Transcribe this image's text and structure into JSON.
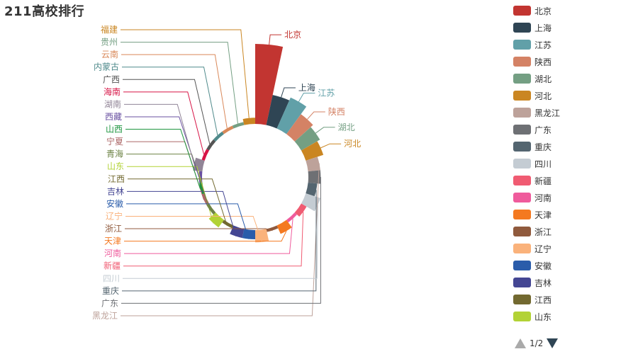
{
  "chart_data": {
    "type": "pie",
    "subtype": "rose-donut",
    "title": "211高校排行",
    "series": [
      {
        "name": "北京",
        "value": 26,
        "color": "#c23531"
      },
      {
        "name": "上海",
        "value": 10,
        "color": "#2f4554"
      },
      {
        "name": "江苏",
        "value": 11,
        "color": "#61a0a8"
      },
      {
        "name": "陕西",
        "value": 8,
        "color": "#d48265"
      },
      {
        "name": "湖北",
        "value": 7,
        "color": "#749f83"
      },
      {
        "name": "河北",
        "value": 6,
        "color": "#ca8622"
      },
      {
        "name": "黑龙江",
        "value": 4,
        "color": "#bda29a"
      },
      {
        "name": "广东",
        "value": 4,
        "color": "#6e7074"
      },
      {
        "name": "重庆",
        "value": 3,
        "color": "#546570"
      },
      {
        "name": "四川",
        "value": 5,
        "color": "#c4ccd3"
      },
      {
        "name": "新疆",
        "value": 2,
        "color": "#f05b72"
      },
      {
        "name": "河南",
        "value": 1,
        "color": "#ef5b9c"
      },
      {
        "name": "天津",
        "value": 3,
        "color": "#f47920"
      },
      {
        "name": "浙江",
        "value": 1,
        "color": "#905a3d"
      },
      {
        "name": "辽宁",
        "value": 4,
        "color": "#fab27b"
      },
      {
        "name": "安徽",
        "value": 3,
        "color": "#2a5caa"
      },
      {
        "name": "吉林",
        "value": 3,
        "color": "#444693"
      },
      {
        "name": "江西",
        "value": 1,
        "color": "#726930"
      },
      {
        "name": "山东",
        "value": 3,
        "color": "#b2d235"
      },
      {
        "name": "青海",
        "value": 1,
        "color": "#6d8346"
      },
      {
        "name": "宁夏",
        "value": 1,
        "color": "#ac6767"
      },
      {
        "name": "山西",
        "value": 1,
        "color": "#1d953f"
      },
      {
        "name": "西藏",
        "value": 1,
        "color": "#6950a1"
      },
      {
        "name": "湖南",
        "value": 3,
        "color": "#918597"
      },
      {
        "name": "海南",
        "value": 1,
        "color": "#d71345"
      },
      {
        "name": "广西",
        "value": 1,
        "color": "#545454"
      },
      {
        "name": "内蒙古",
        "value": 1,
        "color": "#4f8a8b"
      },
      {
        "name": "云南",
        "value": 1,
        "color": "#d98859"
      },
      {
        "name": "贵州",
        "value": 1,
        "color": "#749f83"
      },
      {
        "name": "福建",
        "value": 2,
        "color": "#ca8622"
      }
    ]
  },
  "legend": {
    "visible_count": 19,
    "page_current": 1,
    "page_total": 2,
    "page_label": "1/2",
    "prev_icon": "triangle-up-icon",
    "next_icon": "triangle-down-icon"
  }
}
